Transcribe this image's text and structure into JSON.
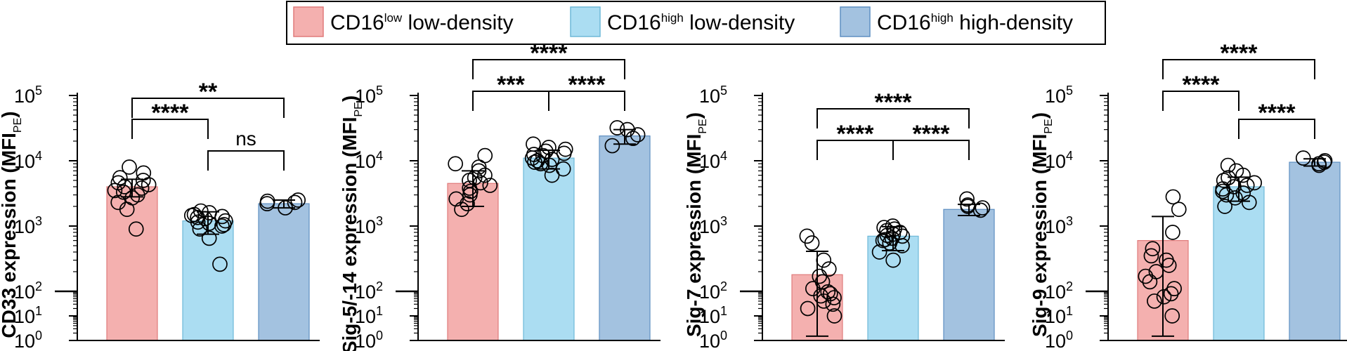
{
  "legend": {
    "items": [
      {
        "name": "CD16",
        "sup": "low",
        "rest": " low-density",
        "color": "#F4B0AF",
        "stroke": "#E07B7B"
      },
      {
        "name": "CD16",
        "sup": "high",
        "rest": " low-density",
        "color": "#ABDDF2",
        "stroke": "#6FB9D8"
      },
      {
        "name": "CD16",
        "sup": "high",
        "rest": " high-density",
        "color": "#A3C2E0",
        "stroke": "#5E8FC2"
      }
    ]
  },
  "y_tick_labels": [
    {
      "exp": 0,
      "base": "10",
      "sup": "0"
    },
    {
      "exp": 1,
      "base": "10",
      "sup": "1"
    },
    {
      "exp": 2,
      "base": "10",
      "sup": "2"
    },
    {
      "exp": 3,
      "base": "10",
      "sup": "3"
    },
    {
      "exp": 4,
      "base": "10",
      "sup": "4"
    },
    {
      "exp": 5,
      "base": "10",
      "sup": "5"
    }
  ],
  "chart_data": [
    {
      "type": "bar",
      "scale": "log10-split",
      "title": "",
      "ylabel": "CD33 expression (MFI",
      "ylabel_sub": "PE",
      "ylabel_end": ")",
      "ylim": [
        1,
        100000
      ],
      "categories": [
        "CD16low low-density",
        "CD16high low-density",
        "CD16high high-density"
      ],
      "values": [
        4000,
        1200,
        2200
      ],
      "error_sd": [
        1200,
        450,
        300
      ],
      "points": [
        [
          8000,
          6500,
          5500,
          5000,
          4600,
          4300,
          4000,
          3800,
          3500,
          3300,
          3000,
          2700,
          2300,
          1800,
          900
        ],
        [
          1700,
          1600,
          1500,
          1450,
          1400,
          1350,
          1300,
          1200,
          1150,
          1100,
          1050,
          1000,
          900,
          650,
          260
        ],
        [
          2500,
          2400,
          2300,
          2200,
          1900
        ]
      ],
      "significance": [
        {
          "from": 0,
          "to": 1,
          "label": "****",
          "level": 1
        },
        {
          "from": 1,
          "to": 2,
          "label": "ns",
          "level": 0
        },
        {
          "from": 0,
          "to": 2,
          "label": "**",
          "level": 2
        }
      ]
    },
    {
      "type": "bar",
      "scale": "log10-split",
      "title": "",
      "ylabel": "Sig-5/-14 expression (MFI",
      "ylabel_sub": "PE",
      "ylabel_end": ")",
      "ylim": [
        1,
        100000
      ],
      "categories": [
        "CD16low low-density",
        "CD16high low-density",
        "CD16high high-density"
      ],
      "values": [
        4500,
        11000,
        24000
      ],
      "error_sd": [
        2500,
        3500,
        6000
      ],
      "points": [
        [
          12000,
          9000,
          8000,
          7000,
          6000,
          5500,
          5000,
          4600,
          4200,
          3800,
          3400,
          3000,
          2600,
          2200,
          1800
        ],
        [
          18000,
          16000,
          15000,
          14000,
          13000,
          12500,
          12000,
          11000,
          10500,
          10000,
          9500,
          9000,
          8500,
          7500,
          6000
        ],
        [
          32000,
          30000,
          25000,
          22000,
          17000
        ]
      ],
      "significance": [
        {
          "from": 0,
          "to": 1,
          "label": "***",
          "level": 1
        },
        {
          "from": 1,
          "to": 2,
          "label": "****",
          "level": 1
        },
        {
          "from": 0,
          "to": 2,
          "label": "****",
          "level": 2
        }
      ]
    },
    {
      "type": "bar",
      "scale": "log10-split",
      "title": "",
      "ylabel": "Sig-7 expression (MFI",
      "ylabel_sub": "PE",
      "ylabel_end": ")",
      "ylim": [
        1,
        100000
      ],
      "categories": [
        "CD16low low-density",
        "CD16high low-density",
        "CD16high high-density"
      ],
      "values": [
        180,
        700,
        1800
      ],
      "error_sd": [
        230,
        280,
        350
      ],
      "points": [
        [
          700,
          550,
          300,
          220,
          170,
          140,
          110,
          95,
          80,
          65,
          55,
          40,
          30,
          20,
          10
        ],
        [
          1000,
          950,
          900,
          850,
          800,
          750,
          720,
          700,
          650,
          620,
          600,
          550,
          500,
          400,
          300
        ],
        [
          2600,
          2100,
          2000,
          1900,
          1750
        ]
      ],
      "significance": [
        {
          "from": 0,
          "to": 1,
          "label": "****",
          "level": 1
        },
        {
          "from": 1,
          "to": 2,
          "label": "****",
          "level": 1
        },
        {
          "from": 0,
          "to": 2,
          "label": "****",
          "level": 2
        }
      ]
    },
    {
      "type": "bar",
      "scale": "log10-split",
      "title": "",
      "ylabel": "Sig-9 expression (MFI",
      "ylabel_sub": "PE",
      "ylabel_end": ")",
      "ylim": [
        1,
        100000
      ],
      "categories": [
        "CD16low low-density",
        "CD16high low-density",
        "CD16high high-density"
      ],
      "values": [
        600,
        4000,
        9500
      ],
      "error_sd": [
        800,
        1600,
        1200
      ],
      "points": [
        [
          2800,
          1800,
          800,
          450,
          350,
          300,
          250,
          200,
          170,
          140,
          110,
          80,
          60,
          40,
          10
        ],
        [
          8500,
          7000,
          6000,
          5500,
          5000,
          4600,
          4200,
          4000,
          3700,
          3400,
          3200,
          3000,
          2700,
          2300,
          2000
        ],
        [
          11000,
          10000,
          9500,
          9000,
          8500
        ]
      ],
      "significance": [
        {
          "from": 0,
          "to": 1,
          "label": "****",
          "level": 1
        },
        {
          "from": 1,
          "to": 2,
          "label": "****",
          "level": 0
        },
        {
          "from": 0,
          "to": 2,
          "label": "****",
          "level": 2
        }
      ]
    }
  ]
}
